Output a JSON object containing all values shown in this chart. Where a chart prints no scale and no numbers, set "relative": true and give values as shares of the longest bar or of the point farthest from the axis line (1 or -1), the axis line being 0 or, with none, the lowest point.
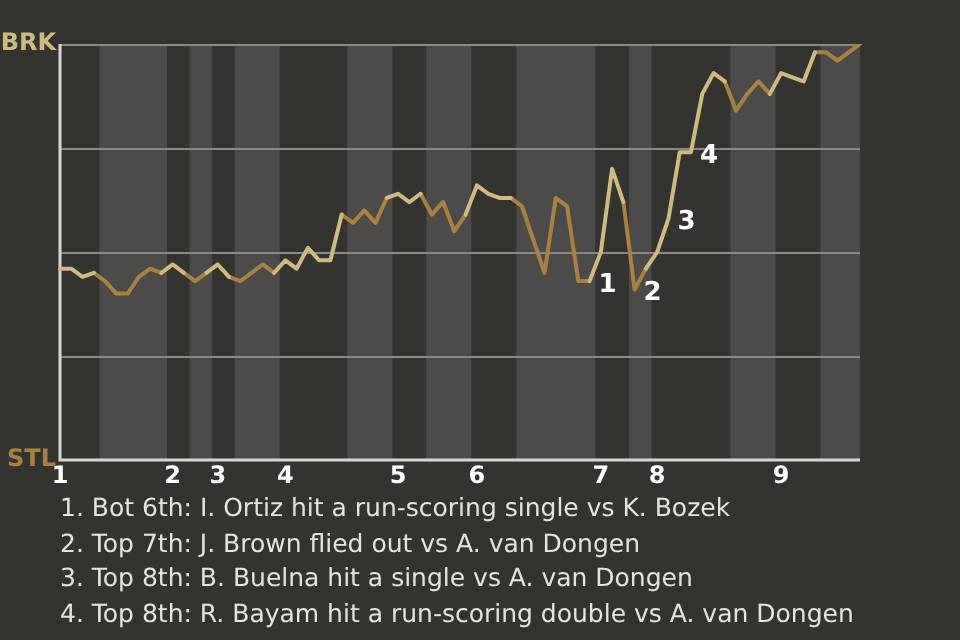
{
  "chart_data": {
    "type": "line",
    "relative": true,
    "categories": [
      "1",
      null,
      null,
      null,
      null,
      null,
      null,
      null,
      null,
      null,
      "2",
      null,
      null,
      null,
      "3",
      null,
      null,
      null,
      null,
      null,
      "4",
      null,
      null,
      null,
      null,
      null,
      null,
      null,
      null,
      null,
      "5",
      null,
      null,
      null,
      null,
      null,
      null,
      "6",
      null,
      null,
      null,
      null,
      null,
      null,
      null,
      null,
      null,
      null,
      "7",
      null,
      null,
      null,
      null,
      "8",
      null,
      null,
      null,
      null,
      null,
      null,
      null,
      null,
      null,
      null,
      "9",
      null,
      null,
      null,
      null,
      null,
      null,
      null
    ],
    "series": [
      {
        "color": "#cdbb82",
        "values": [
          0.46,
          0.46,
          0.44,
          0.45,
          null,
          null,
          null,
          null,
          null,
          0.45,
          0.47,
          0.45,
          null,
          0.45,
          0.47,
          0.44,
          null,
          null,
          null,
          0.45,
          0.48,
          0.46,
          0.51,
          0.48,
          0.48,
          0.59,
          null,
          null,
          null,
          0.63,
          0.64,
          0.62,
          0.64,
          null,
          null,
          null,
          0.59,
          0.66,
          0.64,
          0.63,
          0.63,
          null,
          null,
          null,
          null,
          null,
          null,
          0.43,
          0.5,
          0.7,
          0.62,
          null,
          0.46,
          0.5,
          0.58,
          0.74,
          0.74,
          0.88,
          0.93,
          0.91,
          null,
          null,
          null,
          0.88,
          0.93,
          0.92,
          0.91,
          0.98,
          null,
          null,
          null,
          null
        ],
        "name": null
      },
      {
        "color": "#a8823e",
        "values": [
          null,
          null,
          null,
          0.45,
          0.43,
          0.4,
          0.4,
          0.44,
          0.46,
          0.45,
          null,
          0.45,
          0.43,
          0.45,
          null,
          0.44,
          0.43,
          0.45,
          0.47,
          0.45,
          null,
          null,
          null,
          null,
          null,
          0.59,
          0.57,
          0.6,
          0.57,
          0.63,
          null,
          null,
          0.64,
          0.59,
          0.62,
          0.55,
          0.59,
          null,
          null,
          null,
          0.63,
          0.61,
          0.53,
          0.45,
          0.63,
          0.61,
          0.43,
          0.43,
          null,
          null,
          0.62,
          0.41,
          0.46,
          null,
          null,
          null,
          null,
          null,
          null,
          0.91,
          0.84,
          0.88,
          0.91,
          0.88,
          null,
          null,
          null,
          0.98,
          0.98,
          0.96,
          0.98,
          1.0
        ],
        "name": null
      }
    ],
    "marker": "none",
    "ref_lines": [
      {
        "axis": "y",
        "value": 0.25,
        "color": "#8a8884"
      },
      {
        "axis": "y",
        "value": 0.5,
        "color": "#8a8884"
      },
      {
        "axis": "y",
        "value": 0.75,
        "color": "#8a8884"
      },
      {
        "axis": "y",
        "value": 1,
        "color": "#8a8884"
      }
    ],
    "annotations": [
      "BRK",
      "STL",
      "1",
      "2",
      "3",
      "4",
      "1. Bot 6th: I. Ortiz hit a run-scoring single vs K. Bozek",
      "2. Top 7th: J. Brown flied out vs A. van Dongen",
      "3. Top 8th: B. Buelna hit a single vs A. van Dongen",
      "4. Top 8th: R. Bayam hit a run-scoring double vs A. van Dongen"
    ]
  }
}
